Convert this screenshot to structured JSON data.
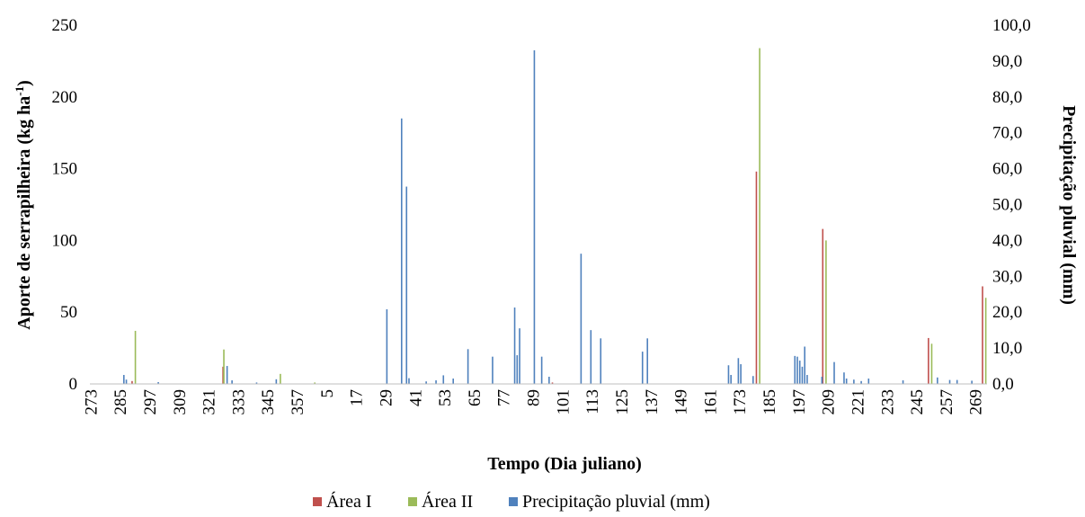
{
  "chart_data": {
    "type": "bar",
    "xlabel": "Tempo (Dia juliano)",
    "ylabel_left_main": "Aporte de serrapilheira (kg ha",
    "ylabel_left_sup": "-1",
    "ylabel_left_close": ")",
    "ylabel_right": "Precipitação pluvial (mm)",
    "ylim_left": [
      0,
      250
    ],
    "ylim_right": [
      0,
      100
    ],
    "y_ticks_left": [
      "0",
      "50",
      "100",
      "150",
      "200",
      "250"
    ],
    "y_ticks_right": [
      "0,0",
      "10,0",
      "20,0",
      "30,0",
      "40,0",
      "50,0",
      "60,0",
      "70,0",
      "80,0",
      "90,0",
      "100,0"
    ],
    "x_ticks": [
      "273",
      "285",
      "297",
      "309",
      "321",
      "333",
      "345",
      "357",
      "5",
      "17",
      "29",
      "41",
      "53",
      "65",
      "77",
      "89",
      "101",
      "113",
      "125",
      "137",
      "149",
      "161",
      "173",
      "185",
      "197",
      "209",
      "221",
      "233",
      "245",
      "257",
      "269"
    ],
    "x_index_range": [
      0,
      365
    ],
    "legend_position": "bottom",
    "series": [
      {
        "name": "Área I",
        "color": "#c0504d",
        "axis": "left",
        "points": [
          {
            "x": 17,
            "y": 2
          },
          {
            "x": 54,
            "y": 12
          },
          {
            "x": 188,
            "y": 1
          },
          {
            "x": 271,
            "y": 148
          },
          {
            "x": 298,
            "y": 108
          },
          {
            "x": 341,
            "y": 32
          },
          {
            "x": 363,
            "y": 68
          }
        ]
      },
      {
        "name": "Área II",
        "color": "#9bbb59",
        "axis": "left",
        "points": [
          {
            "x": 18,
            "y": 37
          },
          {
            "x": 54,
            "y": 24
          },
          {
            "x": 77,
            "y": 7
          },
          {
            "x": 91,
            "y": 1
          },
          {
            "x": 272,
            "y": 234
          },
          {
            "x": 299,
            "y": 100
          },
          {
            "x": 342,
            "y": 28
          },
          {
            "x": 364,
            "y": 60
          }
        ]
      },
      {
        "name": "Precipitação pluvial (mm)",
        "color": "#4f81bd",
        "axis": "right",
        "points": [
          {
            "x": 13,
            "y": 2.5
          },
          {
            "x": 14,
            "y": 1.2
          },
          {
            "x": 27,
            "y": 0.5
          },
          {
            "x": 55,
            "y": 5
          },
          {
            "x": 57,
            "y": 1.0
          },
          {
            "x": 67,
            "y": 0.4
          },
          {
            "x": 75,
            "y": 1.3
          },
          {
            "x": 120,
            "y": 20.8
          },
          {
            "x": 126,
            "y": 74
          },
          {
            "x": 128,
            "y": 55
          },
          {
            "x": 129,
            "y": 1.6
          },
          {
            "x": 136,
            "y": 0.7
          },
          {
            "x": 140,
            "y": 1.0
          },
          {
            "x": 143,
            "y": 2.4
          },
          {
            "x": 147,
            "y": 1.5
          },
          {
            "x": 153,
            "y": 9.7
          },
          {
            "x": 163,
            "y": 7.6
          },
          {
            "x": 172,
            "y": 21.3
          },
          {
            "x": 173,
            "y": 8.0
          },
          {
            "x": 174,
            "y": 15.5
          },
          {
            "x": 180,
            "y": 93.0
          },
          {
            "x": 183,
            "y": 7.6
          },
          {
            "x": 186,
            "y": 2.0
          },
          {
            "x": 199,
            "y": 36.3
          },
          {
            "x": 203,
            "y": 15.0
          },
          {
            "x": 207,
            "y": 12.7
          },
          {
            "x": 224,
            "y": 9.0
          },
          {
            "x": 226,
            "y": 12.7
          },
          {
            "x": 259,
            "y": 5.2
          },
          {
            "x": 260,
            "y": 2.5
          },
          {
            "x": 263,
            "y": 7.2
          },
          {
            "x": 264,
            "y": 5.5
          },
          {
            "x": 269,
            "y": 2.2
          },
          {
            "x": 286,
            "y": 7.8
          },
          {
            "x": 287,
            "y": 7.6
          },
          {
            "x": 288,
            "y": 6.5
          },
          {
            "x": 289,
            "y": 4.8
          },
          {
            "x": 290,
            "y": 10.4
          },
          {
            "x": 291,
            "y": 2.5
          },
          {
            "x": 297,
            "y": 2.0
          },
          {
            "x": 302,
            "y": 6.1
          },
          {
            "x": 306,
            "y": 3.2
          },
          {
            "x": 307,
            "y": 1.5
          },
          {
            "x": 310,
            "y": 1.2
          },
          {
            "x": 313,
            "y": 0.8
          },
          {
            "x": 316,
            "y": 1.5
          },
          {
            "x": 330,
            "y": 1.0
          },
          {
            "x": 344,
            "y": 1.8
          },
          {
            "x": 349,
            "y": 1.1
          },
          {
            "x": 352,
            "y": 1.1
          },
          {
            "x": 358,
            "y": 0.9
          }
        ]
      }
    ]
  }
}
